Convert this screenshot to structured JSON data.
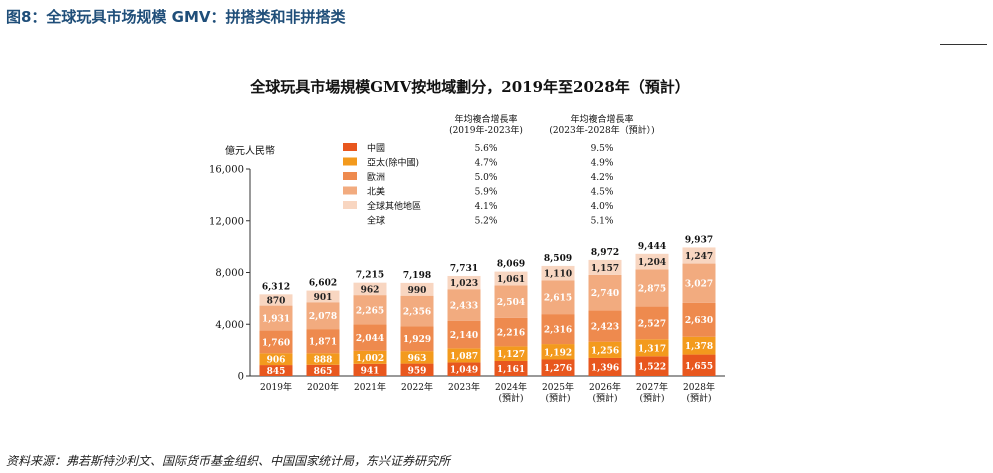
{
  "header": {
    "title": "图8：全球玩具市场规模 GMV：拼搭类和非拼搭类"
  },
  "source": "资料来源：弗若斯特沙利文、国际货币基金组织、中国国家统计局，东兴证券研究所",
  "chart_data": {
    "type": "bar",
    "stacked": true,
    "title": "全球玩具市場規模GMV按地域劃分，2019年至2028年（預計）",
    "ylabel": "億元人民幣",
    "ylim": [
      0,
      16000
    ],
    "yticks": [
      "0",
      "4,000",
      "8,000",
      "12,000",
      "16,000"
    ],
    "yticks_values": [
      0,
      4000,
      8000,
      12000,
      16000
    ],
    "grid": false,
    "legend_position": "top-left",
    "categories": [
      [
        "2019年"
      ],
      [
        "2020年"
      ],
      [
        "2021年"
      ],
      [
        "2022年"
      ],
      [
        "2023年"
      ],
      [
        "2024年",
        "(預計)"
      ],
      [
        "2025年",
        "(預計)"
      ],
      [
        "2026年",
        "(預計)"
      ],
      [
        "2027年",
        "(預計)"
      ],
      [
        "2028年",
        "(預計)"
      ]
    ],
    "series": [
      {
        "name": "中國",
        "color": "#e8571e",
        "values": [
          845,
          865,
          941,
          959,
          1049,
          1161,
          1276,
          1396,
          1522,
          1655
        ],
        "labels": [
          "845",
          "865",
          "941",
          "959",
          "1,049",
          "1,161",
          "1,276",
          "1,396",
          "1,522",
          "1,655"
        ]
      },
      {
        "name": "亞太(除中國)",
        "color": "#f39a1d",
        "values": [
          906,
          888,
          1002,
          963,
          1087,
          1127,
          1192,
          1256,
          1317,
          1378
        ],
        "labels": [
          "906",
          "888",
          "1,002",
          "963",
          "1,087",
          "1,127",
          "1,192",
          "1,256",
          "1,317",
          "1,378"
        ]
      },
      {
        "name": "歐洲",
        "color": "#ee8a4e",
        "values": [
          1760,
          1871,
          2044,
          1929,
          2140,
          2216,
          2316,
          2423,
          2527,
          2630
        ],
        "labels": [
          "1,760",
          "1,871",
          "2,044",
          "1,929",
          "2,140",
          "2,216",
          "2,316",
          "2,423",
          "2,527",
          "2,630"
        ]
      },
      {
        "name": "北美",
        "color": "#f2ab7f",
        "values": [
          1931,
          2078,
          2265,
          2356,
          2433,
          2504,
          2615,
          2740,
          2875,
          3027
        ],
        "labels": [
          "1,931",
          "2,078",
          "2,265",
          "2,356",
          "2,433",
          "2,504",
          "2,615",
          "2,740",
          "2,875",
          "3,027"
        ]
      },
      {
        "name": "全球其他地區",
        "color": "#f8d6c1",
        "values": [
          870,
          901,
          962,
          990,
          1023,
          1061,
          1110,
          1157,
          1204,
          1247
        ],
        "labels": [
          "870",
          "901",
          "962",
          "990",
          "1,023",
          "1,061",
          "1,110",
          "1,157",
          "1,204",
          "1,247"
        ]
      }
    ],
    "totals": [
      6312,
      6602,
      7215,
      7198,
      7731,
      8069,
      8509,
      8972,
      9444,
      9937
    ],
    "total_labels": [
      "6,312",
      "6,602",
      "7,215",
      "7,198",
      "7,731",
      "8,069",
      "8,509",
      "8,972",
      "9,444",
      "9,937"
    ],
    "cagr": {
      "header_1": [
        "年均複合增長率",
        "(2019年-2023年)"
      ],
      "header_2": [
        "年均複合增長率",
        "(2023年-2028年（預計）)"
      ],
      "rows": [
        {
          "name": "中國",
          "c1": "5.6%",
          "c2": "9.5%"
        },
        {
          "name": "亞太(除中國)",
          "c1": "4.7%",
          "c2": "4.9%"
        },
        {
          "name": "歐洲",
          "c1": "5.0%",
          "c2": "4.2%"
        },
        {
          "name": "北美",
          "c1": "5.9%",
          "c2": "4.5%"
        },
        {
          "name": "全球其他地區",
          "c1": "4.1%",
          "c2": "4.0%"
        },
        {
          "name": "全球",
          "c1": "5.2%",
          "c2": "5.1%"
        }
      ]
    }
  }
}
